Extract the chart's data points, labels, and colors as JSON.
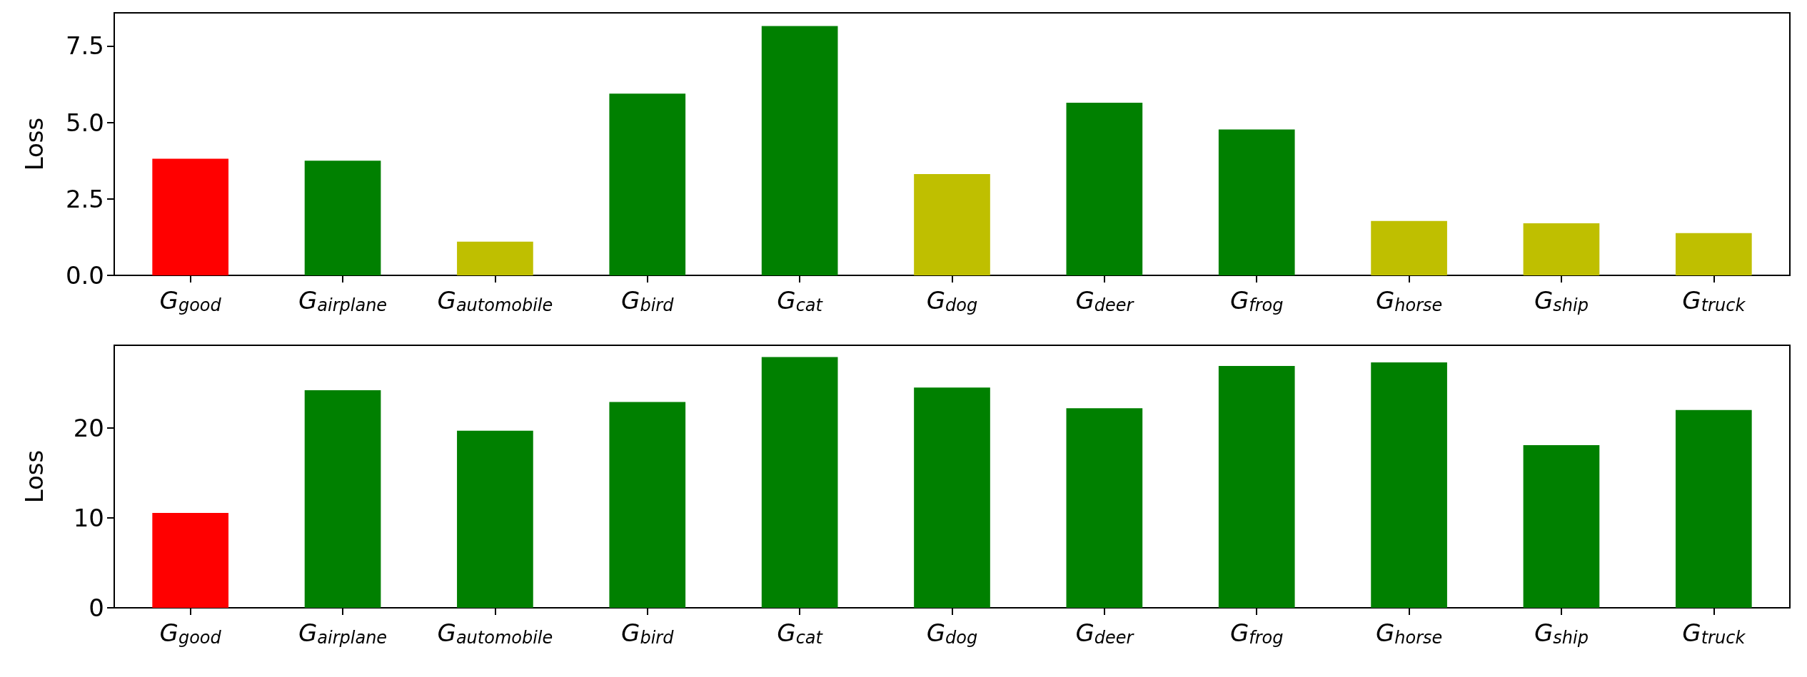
{
  "chart_data": [
    {
      "type": "bar",
      "ylabel": "Loss",
      "categories": [
        "G$_{good}$",
        "G$_{airplane}$",
        "G$_{automobile}$",
        "G$_{bird}$",
        "G$_{cat}$",
        "G$_{dog}$",
        "G$_{deer}$",
        "G$_{frog}$",
        "G$_{horse}$",
        "G$_{ship}$",
        "G$_{truck}$"
      ],
      "values": [
        3.81,
        3.75,
        1.1,
        5.94,
        8.15,
        3.31,
        5.64,
        4.77,
        1.78,
        1.7,
        1.38
      ],
      "colors": [
        "#ff0000",
        "#008000",
        "#bfbf00",
        "#008000",
        "#008000",
        "#bfbf00",
        "#008000",
        "#008000",
        "#bfbf00",
        "#bfbf00",
        "#bfbf00"
      ],
      "ylim": [
        0,
        8.58
      ],
      "yticks": [
        {
          "value": 0,
          "label": "0.0"
        },
        {
          "value": 2.5,
          "label": "2.5"
        },
        {
          "value": 5,
          "label": "5.0"
        },
        {
          "value": 7.5,
          "label": "7.5"
        }
      ]
    },
    {
      "type": "bar",
      "ylabel": "Loss",
      "categories": [
        "G$_{good}$",
        "G$_{airplane}$",
        "G$_{automobile}$",
        "G$_{bird}$",
        "G$_{cat}$",
        "G$_{dog}$",
        "G$_{deer}$",
        "G$_{frog}$",
        "G$_{horse}$",
        "G$_{ship}$",
        "G$_{truck}$"
      ],
      "values": [
        10.55,
        24.2,
        19.7,
        22.9,
        27.9,
        24.5,
        22.2,
        26.9,
        27.3,
        18.1,
        22.0
      ],
      "colors": [
        "#ff0000",
        "#008000",
        "#008000",
        "#008000",
        "#008000",
        "#008000",
        "#008000",
        "#008000",
        "#008000",
        "#008000",
        "#008000"
      ],
      "ylim": [
        0,
        29.2
      ],
      "yticks": [
        0,
        10,
        20
      ]
    }
  ]
}
